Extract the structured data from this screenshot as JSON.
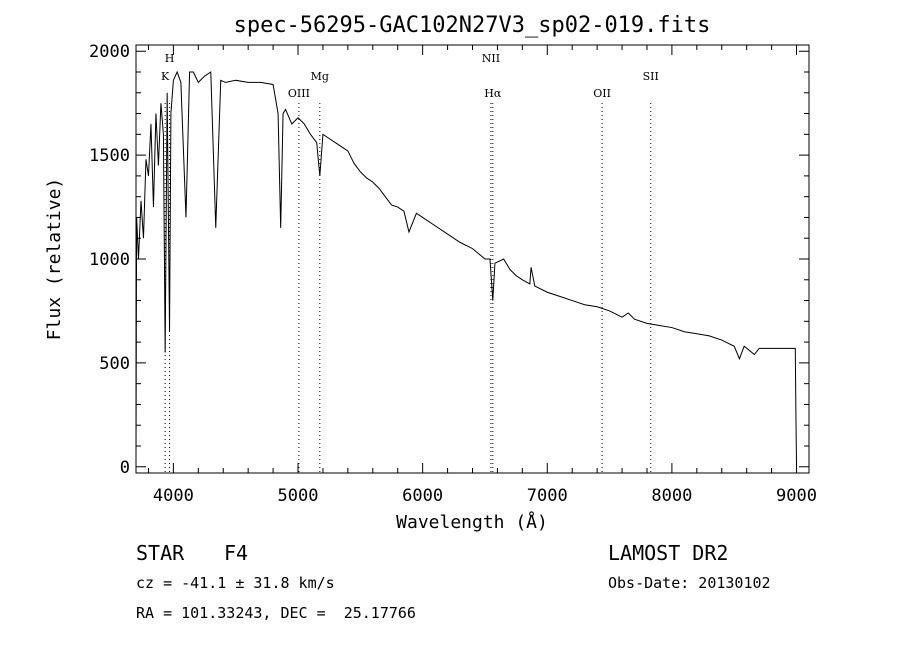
{
  "chart_data": {
    "type": "line",
    "title": "spec-56295-GAC102N27V3_sp02-019.fits",
    "xlabel": "Wavelength (Å)",
    "ylabel": "Flux (relative)",
    "xlim": [
      3700,
      9100
    ],
    "ylim": [
      -30,
      2030
    ],
    "x_ticks": [
      4000,
      5000,
      6000,
      7000,
      8000,
      9000
    ],
    "y_ticks": [
      0,
      500,
      1000,
      1500,
      2000
    ],
    "grid": false,
    "line_color": "#000000",
    "reference_lines": [
      {
        "wavelength": 3934,
        "label": "K",
        "label_level": 2
      },
      {
        "wavelength": 3969,
        "label": "H",
        "label_level": 1
      },
      {
        "wavelength": 5007,
        "label": "OIII",
        "label_level": 3
      },
      {
        "wavelength": 5175,
        "label": "Mg",
        "label_level": 2
      },
      {
        "wavelength": 6548,
        "label": "NII",
        "label_level": 1
      },
      {
        "wavelength": 6563,
        "label": "Hα",
        "label_level": 3
      },
      {
        "wavelength": 7440,
        "label": "OII",
        "label_level": 3
      },
      {
        "wavelength": 7830,
        "label": "SII",
        "label_level": 2
      }
    ],
    "series": [
      {
        "x": [
          3700,
          3705,
          3720,
          3740,
          3760,
          3780,
          3800,
          3820,
          3840,
          3860,
          3880,
          3900,
          3920,
          3934,
          3950,
          3969,
          3980,
          4000,
          4030,
          4060,
          4101,
          4130,
          4160,
          4200,
          4250,
          4300,
          4340,
          4380,
          4420,
          4500,
          4600,
          4700,
          4800,
          4840,
          4861,
          4880,
          4900,
          4950,
          5000,
          5050,
          5100,
          5150,
          5175,
          5200,
          5250,
          5300,
          5350,
          5400,
          5450,
          5500,
          5550,
          5600,
          5650,
          5700,
          5750,
          5800,
          5850,
          5890,
          5950,
          6000,
          6100,
          6200,
          6300,
          6400,
          6500,
          6540,
          6563,
          6580,
          6650,
          6700,
          6750,
          6800,
          6860,
          6870,
          6900,
          7000,
          7100,
          7200,
          7300,
          7400,
          7500,
          7600,
          7650,
          7700,
          7800,
          7900,
          8000,
          8100,
          8200,
          8300,
          8400,
          8500,
          8542,
          8580,
          8662,
          8700,
          8800,
          8900,
          8990,
          8995,
          9000
        ],
        "y": [
          50,
          1200,
          1000,
          1280,
          1100,
          1480,
          1400,
          1650,
          1250,
          1700,
          1450,
          1750,
          1600,
          550,
          1800,
          650,
          1700,
          1860,
          1900,
          1850,
          1200,
          1900,
          1900,
          1850,
          1880,
          1900,
          1150,
          1860,
          1850,
          1860,
          1850,
          1850,
          1840,
          1700,
          1150,
          1700,
          1720,
          1650,
          1680,
          1650,
          1600,
          1560,
          1400,
          1600,
          1580,
          1560,
          1540,
          1520,
          1460,
          1420,
          1390,
          1370,
          1340,
          1300,
          1260,
          1250,
          1230,
          1130,
          1220,
          1200,
          1160,
          1120,
          1080,
          1050,
          1000,
          1000,
          800,
          980,
          1000,
          950,
          920,
          900,
          880,
          960,
          870,
          840,
          820,
          800,
          780,
          770,
          750,
          720,
          740,
          710,
          690,
          680,
          670,
          650,
          640,
          630,
          610,
          580,
          520,
          580,
          540,
          570,
          570,
          570,
          570,
          250,
          0
        ]
      }
    ]
  },
  "info": {
    "class_label": "STAR",
    "subclass": "F4",
    "cz_text": "cz = -41.1 ± 31.8 km/s",
    "coords_text": "RA = 101.33243, DEC =  25.17766",
    "survey": "LAMOST DR2",
    "obs_date_text": "Obs-Date: 20130102"
  }
}
